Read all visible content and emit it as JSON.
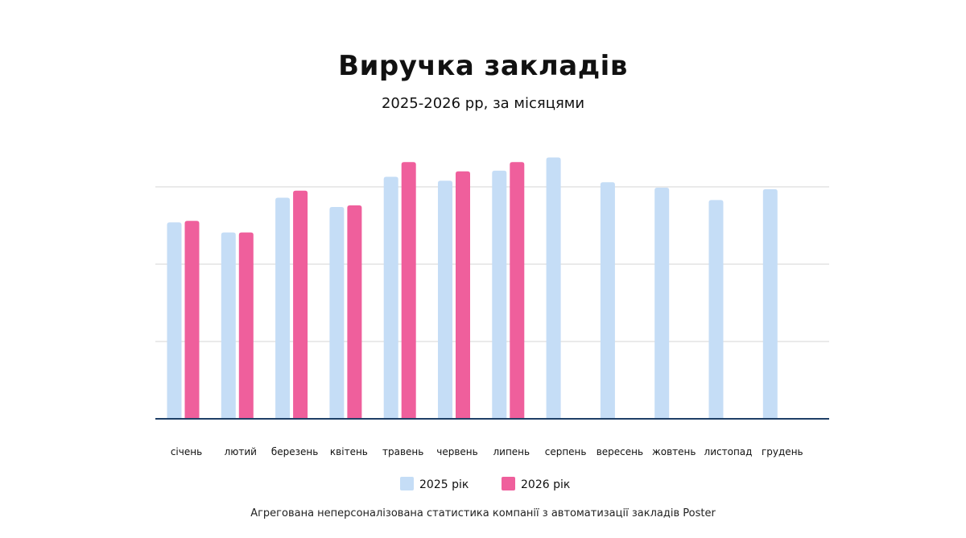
{
  "title": "Виручка закладів",
  "subtitle": "2025-2026 рр, за місяцями",
  "source_note": "Агрегована неперсоналізована статистика компанії з автоматизації закладів Poster",
  "colors": {
    "series_2025": "#c5ddf6",
    "series_2026": "#ef5f9c",
    "grid": "#d4d4d4",
    "axis": "#1f3f66"
  },
  "chart_data": {
    "type": "bar",
    "title": "Виручка закладів",
    "subtitle": "2025-2026 рр, за місяцями",
    "categories": [
      "січень",
      "лютий",
      "березень",
      "квітень",
      "травень",
      "червень",
      "липень",
      "серпень",
      "вересень",
      "жовтень",
      "листопад",
      "грудень"
    ],
    "series": [
      {
        "name": "2025 рік",
        "values": [
          2.54,
          2.41,
          2.86,
          2.74,
          3.13,
          3.08,
          3.21,
          3.38,
          3.06,
          2.99,
          2.83,
          2.97
        ]
      },
      {
        "name": "2026 рік",
        "values": [
          2.56,
          2.41,
          2.95,
          2.76,
          3.32,
          3.2,
          3.32,
          null,
          null,
          null,
          null,
          null
        ]
      }
    ],
    "ylim": [
      0,
      3.5
    ],
    "yticks": [
      0,
      1,
      2,
      3
    ],
    "y_tick_labels_shown": false,
    "grid": true,
    "legend_position": "bottom-center",
    "xlabel": "",
    "ylabel": ""
  }
}
